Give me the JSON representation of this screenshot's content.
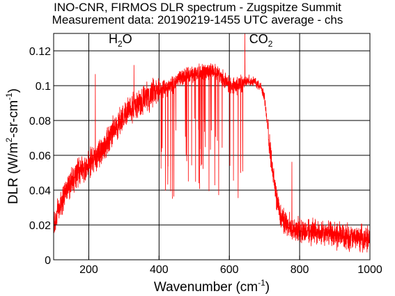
{
  "chart_data": {
    "type": "line",
    "title": "INO-CNR, FIRMOS DLR spectrum - Zugspitze Summit",
    "subtitle": "Measurement data: 20190219-1455 UTC average - chs",
    "xlabel": "Wavenumber (cm",
    "xlabel_sup": "-1",
    "xlabel_tail": ")",
    "ylabel": "DLR (W/m",
    "ylabel_sup1": "2",
    "ylabel_mid": "-sr-cm",
    "ylabel_sup2": "-1",
    "ylabel_tail": ")",
    "xlim": [
      100,
      1000
    ],
    "ylim": [
      0,
      0.13
    ],
    "xticks": [
      200,
      400,
      600,
      800,
      1000
    ],
    "yticks": [
      0,
      0.02,
      0.04,
      0.06,
      0.08,
      0.1,
      0.12
    ],
    "xtick_labels": [
      "200",
      "400",
      "600",
      "800",
      "1000"
    ],
    "ytick_labels": [
      "0",
      "0.02",
      "0.04",
      "0.06",
      "0.08",
      "0.1",
      "0.12"
    ],
    "grid": true,
    "annotations": [
      {
        "main": "H",
        "sub": "2",
        "tail": "O",
        "x": 290,
        "y": 0.1245
      },
      {
        "main": "CO",
        "sub": "2",
        "tail": "",
        "x": 690,
        "y": 0.1245
      }
    ],
    "series": [
      {
        "color": "#ff0000",
        "x": [
          100,
          110,
          120,
          130,
          140,
          150,
          160,
          170,
          180,
          190,
          200,
          210,
          220,
          230,
          240,
          250,
          260,
          270,
          280,
          290,
          300,
          310,
          320,
          330,
          340,
          350,
          360,
          370,
          380,
          390,
          400,
          410,
          420,
          430,
          440,
          450,
          460,
          470,
          480,
          490,
          500,
          510,
          520,
          530,
          540,
          550,
          560,
          570,
          580,
          590,
          600,
          610,
          620,
          630,
          640,
          650,
          660,
          670,
          680,
          690,
          700,
          710,
          720,
          730,
          740,
          750,
          760,
          770,
          780,
          790,
          800,
          820,
          840,
          860,
          880,
          900,
          920,
          940,
          960,
          980,
          1000
        ],
        "y": [
          0.02,
          0.026,
          0.033,
          0.037,
          0.042,
          0.044,
          0.048,
          0.051,
          0.053,
          0.052,
          0.055,
          0.057,
          0.059,
          0.061,
          0.064,
          0.067,
          0.071,
          0.074,
          0.077,
          0.08,
          0.083,
          0.085,
          0.087,
          0.088,
          0.09,
          0.091,
          0.093,
          0.094,
          0.095,
          0.096,
          0.096,
          0.098,
          0.099,
          0.1,
          0.101,
          0.103,
          0.104,
          0.105,
          0.106,
          0.107,
          0.107,
          0.108,
          0.107,
          0.108,
          0.108,
          0.109,
          0.108,
          0.107,
          0.105,
          0.103,
          0.101,
          0.1,
          0.1,
          0.101,
          0.102,
          0.103,
          0.103,
          0.102,
          0.101,
          0.099,
          0.093,
          0.075,
          0.055,
          0.04,
          0.03,
          0.024,
          0.021,
          0.019,
          0.018,
          0.017,
          0.017,
          0.016,
          0.016,
          0.015,
          0.015,
          0.014,
          0.014,
          0.013,
          0.013,
          0.012,
          0.012
        ]
      }
    ]
  }
}
